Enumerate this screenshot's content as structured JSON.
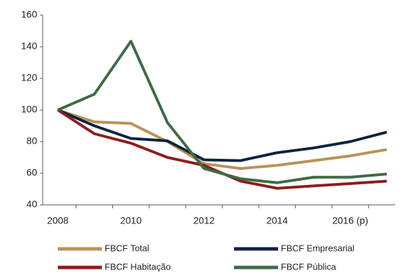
{
  "chart_data": {
    "type": "line",
    "categories": [
      "2008",
      null,
      "2010",
      null,
      "2012",
      null,
      "2014",
      null,
      "2016 (p)",
      null
    ],
    "series": [
      {
        "name": "FBCF Total",
        "color": "#b89357",
        "values": [
          100,
          92.5,
          91.5,
          80,
          66,
          63,
          65,
          68,
          71,
          75
        ]
      },
      {
        "name": "FBCF Empresarial",
        "color": "#0d2240",
        "values": [
          100,
          90,
          82,
          80.5,
          68.5,
          68,
          73,
          76,
          80,
          86
        ]
      },
      {
        "name": "FBCF Habitação",
        "color": "#8c1d1d",
        "values": [
          100,
          85,
          79,
          70,
          65,
          55,
          50.5,
          52,
          53.5,
          55
        ]
      },
      {
        "name": "FBCF Pública",
        "color": "#3e6b44",
        "values": [
          100,
          110,
          143.5,
          92,
          63,
          56.5,
          54,
          57.5,
          57.5,
          59.5
        ]
      }
    ],
    "ylim": [
      40,
      160
    ],
    "yticks": [
      40,
      60,
      80,
      100,
      120,
      140,
      160
    ]
  }
}
